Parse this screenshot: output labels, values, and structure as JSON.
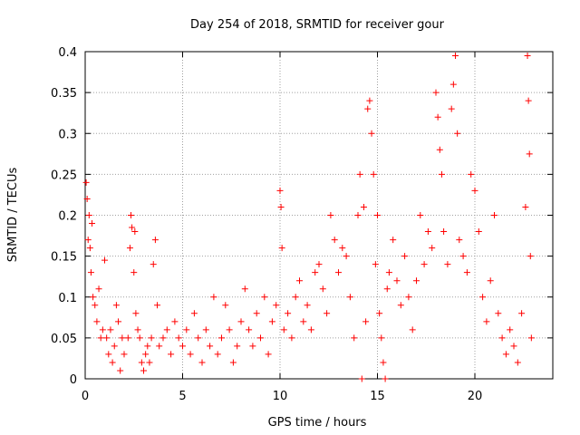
{
  "chart_data": {
    "type": "scatter",
    "title": "Day 254 of 2018, SRMTID for receiver gour",
    "xlabel": "GPS time / hours",
    "ylabel": "SRMTID / TECUs",
    "xlim": [
      0,
      24
    ],
    "ylim": [
      0,
      0.4
    ],
    "x_ticks": [
      0,
      5,
      10,
      15,
      20
    ],
    "y_ticks": [
      0,
      0.05,
      0.1,
      0.15,
      0.2,
      0.25,
      0.3,
      0.35,
      0.4
    ],
    "x_tick_labels": [
      "0",
      "5",
      "10",
      "15",
      "20"
    ],
    "y_tick_labels": [
      "0",
      "0.05",
      "0.1",
      "0.15",
      "0.2",
      "0.25",
      "0.3",
      "0.35",
      "0.4"
    ],
    "grid": true,
    "marker": "+",
    "color": "#ff0000",
    "series": [
      {
        "name": "SRMTID",
        "points": [
          [
            0.05,
            0.24
          ],
          [
            0.1,
            0.22
          ],
          [
            0.15,
            0.17
          ],
          [
            0.2,
            0.2
          ],
          [
            0.25,
            0.16
          ],
          [
            0.3,
            0.13
          ],
          [
            0.35,
            0.19
          ],
          [
            0.4,
            0.1
          ],
          [
            0.5,
            0.09
          ],
          [
            0.6,
            0.07
          ],
          [
            0.7,
            0.11
          ],
          [
            0.8,
            0.05
          ],
          [
            0.9,
            0.06
          ],
          [
            1.0,
            0.145
          ],
          [
            1.1,
            0.05
          ],
          [
            1.2,
            0.03
          ],
          [
            1.3,
            0.06
          ],
          [
            1.4,
            0.02
          ],
          [
            1.5,
            0.04
          ],
          [
            1.6,
            0.09
          ],
          [
            1.7,
            0.07
          ],
          [
            1.8,
            0.01
          ],
          [
            1.9,
            0.05
          ],
          [
            2.0,
            0.03
          ],
          [
            2.2,
            0.05
          ],
          [
            2.3,
            0.16
          ],
          [
            2.35,
            0.2
          ],
          [
            2.4,
            0.185
          ],
          [
            2.5,
            0.13
          ],
          [
            2.55,
            0.18
          ],
          [
            2.6,
            0.08
          ],
          [
            2.7,
            0.06
          ],
          [
            2.8,
            0.05
          ],
          [
            2.9,
            0.02
          ],
          [
            3.0,
            0.01
          ],
          [
            3.1,
            0.03
          ],
          [
            3.2,
            0.04
          ],
          [
            3.3,
            0.02
          ],
          [
            3.4,
            0.05
          ],
          [
            3.5,
            0.14
          ],
          [
            3.6,
            0.17
          ],
          [
            3.7,
            0.09
          ],
          [
            3.8,
            0.04
          ],
          [
            4.0,
            0.05
          ],
          [
            4.2,
            0.06
          ],
          [
            4.4,
            0.03
          ],
          [
            4.6,
            0.07
          ],
          [
            4.8,
            0.05
          ],
          [
            5.0,
            0.04
          ],
          [
            5.2,
            0.06
          ],
          [
            5.4,
            0.03
          ],
          [
            5.6,
            0.08
          ],
          [
            5.8,
            0.05
          ],
          [
            6.0,
            0.02
          ],
          [
            6.2,
            0.06
          ],
          [
            6.4,
            0.04
          ],
          [
            6.6,
            0.1
          ],
          [
            6.8,
            0.03
          ],
          [
            7.0,
            0.05
          ],
          [
            7.2,
            0.09
          ],
          [
            7.4,
            0.06
          ],
          [
            7.6,
            0.02
          ],
          [
            7.8,
            0.04
          ],
          [
            8.0,
            0.07
          ],
          [
            8.2,
            0.11
          ],
          [
            8.4,
            0.06
          ],
          [
            8.6,
            0.04
          ],
          [
            8.8,
            0.08
          ],
          [
            9.0,
            0.05
          ],
          [
            9.2,
            0.1
          ],
          [
            9.4,
            0.03
          ],
          [
            9.6,
            0.07
          ],
          [
            9.8,
            0.09
          ],
          [
            10.0,
            0.23
          ],
          [
            10.05,
            0.21
          ],
          [
            10.1,
            0.16
          ],
          [
            10.2,
            0.06
          ],
          [
            10.4,
            0.08
          ],
          [
            10.6,
            0.05
          ],
          [
            10.8,
            0.1
          ],
          [
            11.0,
            0.12
          ],
          [
            11.2,
            0.07
          ],
          [
            11.4,
            0.09
          ],
          [
            11.6,
            0.06
          ],
          [
            11.8,
            0.13
          ],
          [
            12.0,
            0.14
          ],
          [
            12.2,
            0.11
          ],
          [
            12.4,
            0.08
          ],
          [
            12.6,
            0.2
          ],
          [
            12.8,
            0.17
          ],
          [
            13.0,
            0.13
          ],
          [
            13.2,
            0.16
          ],
          [
            13.4,
            0.15
          ],
          [
            13.6,
            0.1
          ],
          [
            13.8,
            0.05
          ],
          [
            14.0,
            0.2
          ],
          [
            14.1,
            0.25
          ],
          [
            14.2,
            0.0
          ],
          [
            14.3,
            0.21
          ],
          [
            14.4,
            0.07
          ],
          [
            14.5,
            0.33
          ],
          [
            14.6,
            0.34
          ],
          [
            14.7,
            0.3
          ],
          [
            14.8,
            0.25
          ],
          [
            14.9,
            0.14
          ],
          [
            15.0,
            0.2
          ],
          [
            15.1,
            0.08
          ],
          [
            15.2,
            0.05
          ],
          [
            15.3,
            0.02
          ],
          [
            15.4,
            0.0
          ],
          [
            15.5,
            0.11
          ],
          [
            15.6,
            0.13
          ],
          [
            15.8,
            0.17
          ],
          [
            16.0,
            0.12
          ],
          [
            16.2,
            0.09
          ],
          [
            16.4,
            0.15
          ],
          [
            16.6,
            0.1
          ],
          [
            16.8,
            0.06
          ],
          [
            17.0,
            0.12
          ],
          [
            17.2,
            0.2
          ],
          [
            17.4,
            0.14
          ],
          [
            17.6,
            0.18
          ],
          [
            17.8,
            0.16
          ],
          [
            18.0,
            0.35
          ],
          [
            18.1,
            0.32
          ],
          [
            18.2,
            0.28
          ],
          [
            18.3,
            0.25
          ],
          [
            18.4,
            0.18
          ],
          [
            18.6,
            0.14
          ],
          [
            18.8,
            0.33
          ],
          [
            18.9,
            0.36
          ],
          [
            19.0,
            0.395
          ],
          [
            19.1,
            0.3
          ],
          [
            19.2,
            0.17
          ],
          [
            19.4,
            0.15
          ],
          [
            19.6,
            0.13
          ],
          [
            19.8,
            0.25
          ],
          [
            20.0,
            0.23
          ],
          [
            20.2,
            0.18
          ],
          [
            20.4,
            0.1
          ],
          [
            20.6,
            0.07
          ],
          [
            20.8,
            0.12
          ],
          [
            21.0,
            0.2
          ],
          [
            21.2,
            0.08
          ],
          [
            21.4,
            0.05
          ],
          [
            21.6,
            0.03
          ],
          [
            21.8,
            0.06
          ],
          [
            22.0,
            0.04
          ],
          [
            22.2,
            0.02
          ],
          [
            22.4,
            0.08
          ],
          [
            22.6,
            0.21
          ],
          [
            22.7,
            0.395
          ],
          [
            22.75,
            0.34
          ],
          [
            22.8,
            0.275
          ],
          [
            22.85,
            0.15
          ],
          [
            22.9,
            0.05
          ]
        ]
      }
    ]
  }
}
